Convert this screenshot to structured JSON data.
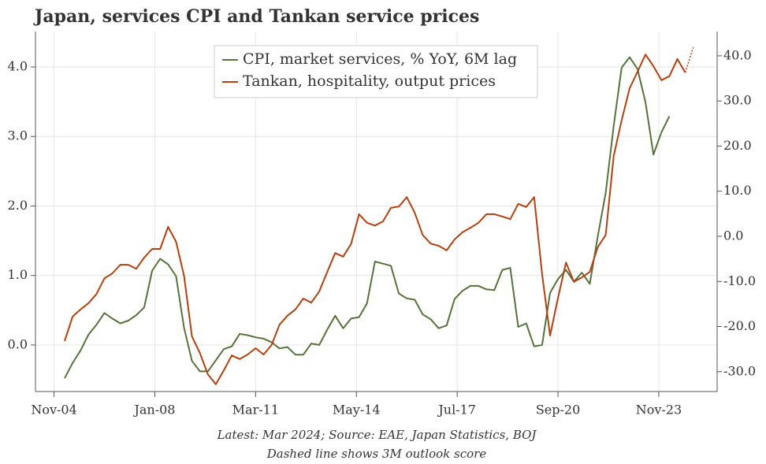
{
  "chart_data": {
    "type": "line",
    "title": "Japan, services CPI and Tankan service prices",
    "notes": [
      "Latest: Mar 2024; Source: EAE, Japan Statistics, BOJ",
      "Dashed line shows 3M outlook score"
    ],
    "x": [
      "2005-03",
      "2005-06",
      "2005-09",
      "2005-12",
      "2006-03",
      "2006-06",
      "2006-09",
      "2006-12",
      "2007-03",
      "2007-06",
      "2007-09",
      "2007-12",
      "2008-03",
      "2008-06",
      "2008-09",
      "2008-12",
      "2009-03",
      "2009-06",
      "2009-09",
      "2009-12",
      "2010-03",
      "2010-06",
      "2010-09",
      "2010-12",
      "2011-03",
      "2011-06",
      "2011-09",
      "2011-12",
      "2012-03",
      "2012-06",
      "2012-09",
      "2012-12",
      "2013-03",
      "2013-06",
      "2013-09",
      "2013-12",
      "2014-03",
      "2014-06",
      "2014-09",
      "2014-12",
      "2015-03",
      "2015-06",
      "2015-09",
      "2015-12",
      "2016-03",
      "2016-06",
      "2016-09",
      "2016-12",
      "2017-03",
      "2017-06",
      "2017-09",
      "2017-12",
      "2018-03",
      "2018-06",
      "2018-09",
      "2018-12",
      "2019-03",
      "2019-06",
      "2019-09",
      "2019-12",
      "2020-03",
      "2020-06",
      "2020-09",
      "2020-12",
      "2021-03",
      "2021-06",
      "2021-09",
      "2021-12",
      "2022-03",
      "2022-06",
      "2022-09",
      "2022-12",
      "2023-03",
      "2023-06",
      "2023-09",
      "2023-12",
      "2024-03",
      "2024-06",
      "2024-09",
      "2024-12"
    ],
    "series": [
      {
        "name": "CPI, market services, % YoY, 6M lag",
        "color": "#56733a",
        "axis": "y",
        "values": [
          -0.48,
          -0.26,
          -0.08,
          0.15,
          0.29,
          0.46,
          0.38,
          0.31,
          0.35,
          0.43,
          0.54,
          1.07,
          1.24,
          1.16,
          0.99,
          0.25,
          -0.23,
          -0.38,
          -0.38,
          -0.22,
          -0.06,
          -0.02,
          0.16,
          0.14,
          0.11,
          0.09,
          0.04,
          -0.05,
          -0.03,
          -0.14,
          -0.14,
          0.02,
          0.0,
          0.22,
          0.42,
          0.24,
          0.38,
          0.4,
          0.6,
          1.2,
          1.17,
          1.14,
          0.74,
          0.67,
          0.65,
          0.44,
          0.37,
          0.24,
          0.28,
          0.66,
          0.78,
          0.85,
          0.85,
          0.8,
          0.79,
          1.08,
          1.11,
          0.26,
          0.31,
          -0.02,
          0.0,
          0.75,
          0.95,
          1.08,
          0.91,
          1.04,
          0.88,
          1.56,
          2.19,
          3.15,
          3.99,
          4.14,
          3.97,
          3.49,
          2.74,
          3.06,
          3.29,
          null,
          null,
          null
        ]
      },
      {
        "name": "Tankan, hospitality, output prices",
        "color": "#b5400f",
        "axis": "y2",
        "dash_last": 1,
        "values": [
          -23.2,
          -17.8,
          -16.2,
          -14.8,
          -12.8,
          -9.3,
          -8.2,
          -6.3,
          -6.3,
          -7.2,
          -4.7,
          -2.8,
          -2.8,
          2.1,
          -1.2,
          -8.7,
          -22.2,
          -25.9,
          -30.6,
          -32.8,
          -29.7,
          -26.4,
          -27.2,
          -26.2,
          -24.8,
          -26.2,
          -24.1,
          -19.6,
          -17.6,
          -16.2,
          -13.8,
          -14.7,
          -12.2,
          -7.9,
          -3.7,
          -4.5,
          -1.7,
          4.9,
          3.0,
          2.4,
          3.3,
          6.3,
          6.6,
          8.7,
          5.2,
          0.3,
          -1.6,
          -2.1,
          -3.1,
          -0.7,
          0.9,
          1.9,
          3.0,
          4.9,
          4.9,
          4.4,
          3.8,
          7.2,
          6.5,
          8.7,
          -8.4,
          -22.0,
          -13.6,
          -5.8,
          -10.1,
          -9.1,
          -7.9,
          -2.4,
          0.3,
          17.8,
          25.7,
          32.8,
          36.5,
          40.3,
          37.7,
          34.6,
          35.5,
          39.3,
          36.3,
          41.9
        ]
      }
    ],
    "xlim": [
      "2004-04",
      "2025-09"
    ],
    "xticks": [
      {
        "value": "2004-11",
        "label": "Nov-04"
      },
      {
        "value": "2008-01",
        "label": "Jan-08"
      },
      {
        "value": "2011-03",
        "label": "Mar-11"
      },
      {
        "value": "2014-05",
        "label": "May-14"
      },
      {
        "value": "2017-07",
        "label": "Jul-17"
      },
      {
        "value": "2020-09",
        "label": "Sep-20"
      },
      {
        "value": "2023-11",
        "label": "Nov-23"
      }
    ],
    "ylim": [
      -0.67,
      4.51
    ],
    "yticks": [
      {
        "value": 0,
        "label": "0.0"
      },
      {
        "value": 1,
        "label": "1.0"
      },
      {
        "value": 2,
        "label": "2.0"
      },
      {
        "value": 3,
        "label": "3.0"
      },
      {
        "value": 4,
        "label": "4.0"
      }
    ],
    "y2lim": [
      -34.4,
      45.4
    ],
    "y2ticks": [
      {
        "value": -30,
        "label": "-30.0"
      },
      {
        "value": -20,
        "label": "-20.0"
      },
      {
        "value": -10,
        "label": "-10.0"
      },
      {
        "value": 0,
        "label": "0.0"
      },
      {
        "value": 10,
        "label": "10.0"
      },
      {
        "value": 20,
        "label": "20.0"
      },
      {
        "value": 30,
        "label": "30.0"
      },
      {
        "value": 40,
        "label": "40.0"
      }
    ],
    "grid": true,
    "legend": "top"
  }
}
